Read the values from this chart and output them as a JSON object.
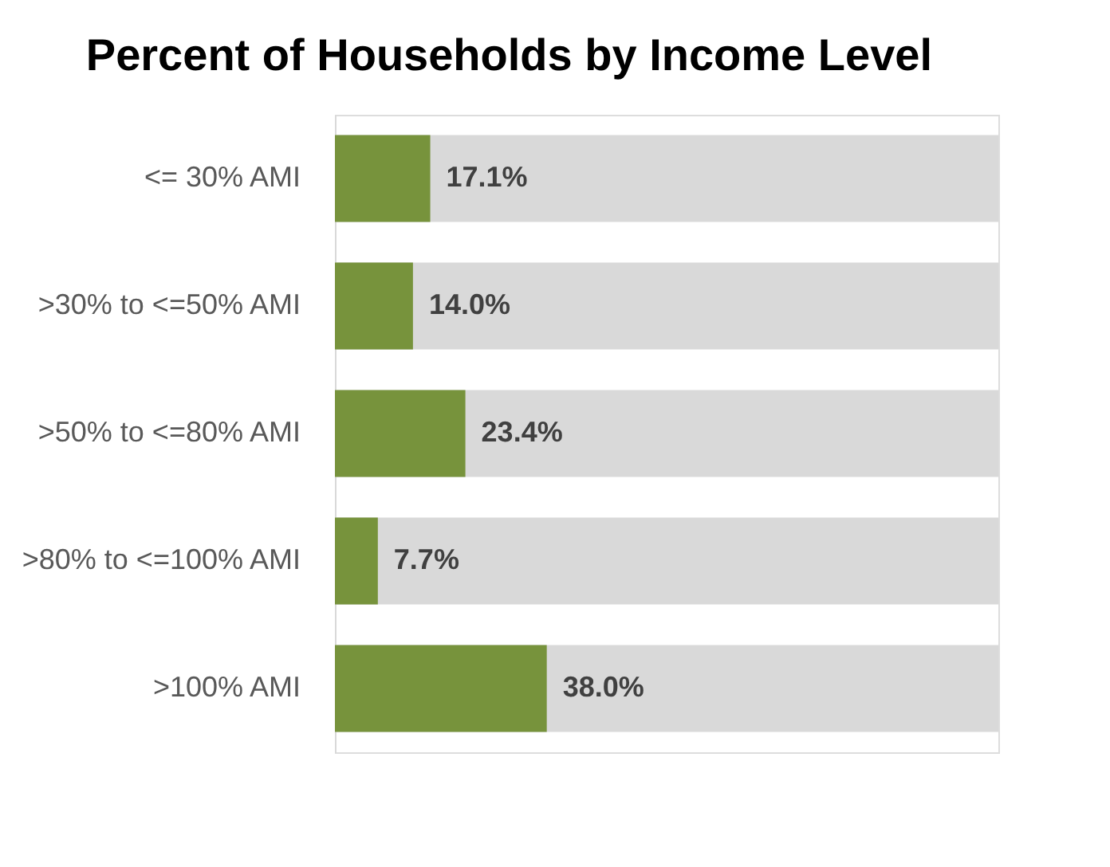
{
  "chart_data": {
    "type": "bar",
    "orientation": "horizontal",
    "title": "Percent of Households by Income Level",
    "categories": [
      "<= 30% AMI",
      ">30% to <=50% AMI",
      ">50% to <=80% AMI",
      ">80% to <=100% AMI",
      ">100% AMI"
    ],
    "values": [
      17.1,
      14.0,
      23.4,
      7.7,
      38.0
    ],
    "value_labels": [
      "17.1%",
      "14.0%",
      "23.4%",
      "7.7%",
      "38.0%"
    ],
    "color": "#77933c",
    "xlim": [
      0,
      119
    ],
    "tick_labels": "y"
  }
}
